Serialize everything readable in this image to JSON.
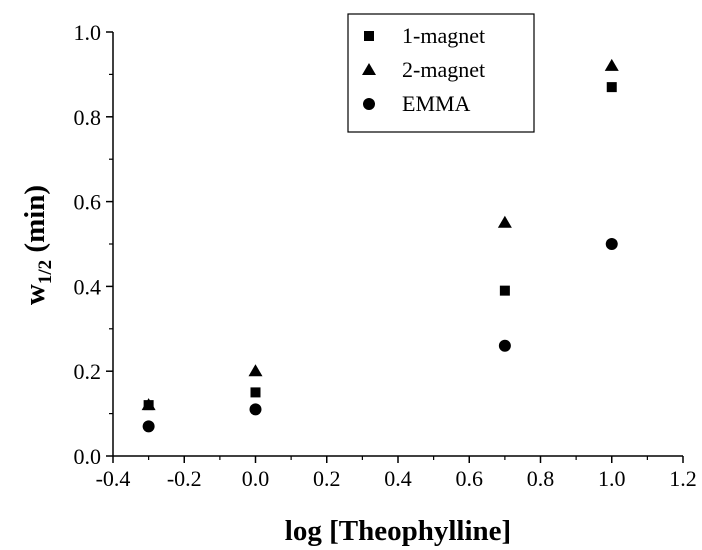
{
  "chart_data": {
    "type": "scatter",
    "title": "",
    "xlabel": "log [Theophylline]",
    "ylabel": {
      "main": "w",
      "subscript": "1/2",
      "suffix": " (min)"
    },
    "xlim": [
      -0.4,
      1.2
    ],
    "ylim": [
      0.0,
      1.0
    ],
    "xticks": [
      "-0.4",
      "-0.2",
      "0.0",
      "0.2",
      "0.4",
      "0.6",
      "0.8",
      "1.0",
      "1.2"
    ],
    "yticks": [
      "0.0",
      "0.2",
      "0.4",
      "0.6",
      "0.8",
      "1.0"
    ],
    "grid": false,
    "legend_position": "top-right",
    "series": [
      {
        "name": "1-magnet",
        "marker": "square",
        "x": [
          -0.3,
          0.0,
          0.7,
          1.0
        ],
        "y": [
          0.12,
          0.15,
          0.39,
          0.87
        ]
      },
      {
        "name": "2-magnet",
        "marker": "triangle",
        "x": [
          -0.3,
          0.0,
          0.7,
          1.0
        ],
        "y": [
          0.12,
          0.2,
          0.55,
          0.92
        ]
      },
      {
        "name": "EMMA",
        "marker": "circle",
        "x": [
          -0.3,
          0.0,
          0.7,
          1.0
        ],
        "y": [
          0.07,
          0.11,
          0.26,
          0.5
        ]
      }
    ]
  }
}
